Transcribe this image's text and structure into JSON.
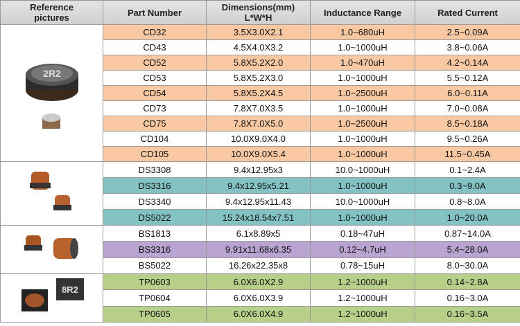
{
  "table": {
    "header": [
      "Reference\npictures",
      "Part Number",
      "Dimensions(mm)\nL*W*H",
      "Inductance Range",
      "Rated Current"
    ],
    "groups": [
      {
        "rows": [
          [
            "CD32",
            "3.5X3.0X2.1",
            "1.0~680uH",
            "2.5~0.09A"
          ],
          [
            "CD43",
            "4.5X4.0X3.2",
            "1.0~1000uH",
            "3.8~0.06A"
          ],
          [
            "CD52",
            "5.8X5.2X2.0",
            "1.0~470uH",
            "4.2~0.14A"
          ],
          [
            "CD53",
            "5.8X5.2X3.0",
            "1.0~1000uH",
            "5.5~0.12A"
          ],
          [
            "CD54",
            "5.8X5.2X4.5",
            "1.0~2500uH",
            "6.0~0.11A"
          ],
          [
            "CD73",
            "7.8X7.0X3.5",
            "1.0~1000uH",
            "7.0~0.08A"
          ],
          [
            "CD75",
            "7.8X7.0X5.0",
            "1.0~2500uH",
            "8.5~0.18A"
          ],
          [
            "CD104",
            "10.0X9.0X4.0",
            "1.0~1000uH",
            "9.5~0.26A"
          ],
          [
            "CD105",
            "10.0X9.0X5.4",
            "1.0~1000uH",
            "11.5~0.45A"
          ]
        ]
      },
      {
        "rows": [
          [
            "DS3308",
            "9.4x12.95x3",
            "10.0~1000uH",
            "0.1~2.4A"
          ],
          [
            "DS3316",
            "9.4x12.95x5.21",
            "1.0~1000uH",
            "0.3~9.0A"
          ],
          [
            "DS3340",
            "9.4x12.95x11.43",
            "10.0~1000uH",
            "0.8~8.0A"
          ],
          [
            "DS5022",
            "15.24x18.54x7.51",
            "1.0~1000uH",
            "1.0~20.0A"
          ]
        ]
      },
      {
        "rows": [
          [
            "BS1813",
            "6.1x8.89x5",
            "0.18~47uH",
            "0.87~14.0A"
          ],
          [
            "BS3316",
            "9.91x11.68x6.35",
            "0.12~4.7uH",
            "5.4~28.0A"
          ],
          [
            "BS5022",
            "16.26x22.35x8",
            "0.78~15uH",
            "8.0~30.0A"
          ]
        ]
      },
      {
        "rows": [
          [
            "TP0603",
            "6.0X6.0X2.9",
            "1.2~1000uH",
            "0.14~2.8A"
          ],
          [
            "TP0604",
            "6.0X6.0X3.9",
            "1.2~1000uH",
            "0.16~3.0A"
          ],
          [
            "TP0605",
            "6.0X6.0X4.9",
            "1.2~1000uH",
            "0.16~3.5A"
          ]
        ]
      }
    ]
  }
}
